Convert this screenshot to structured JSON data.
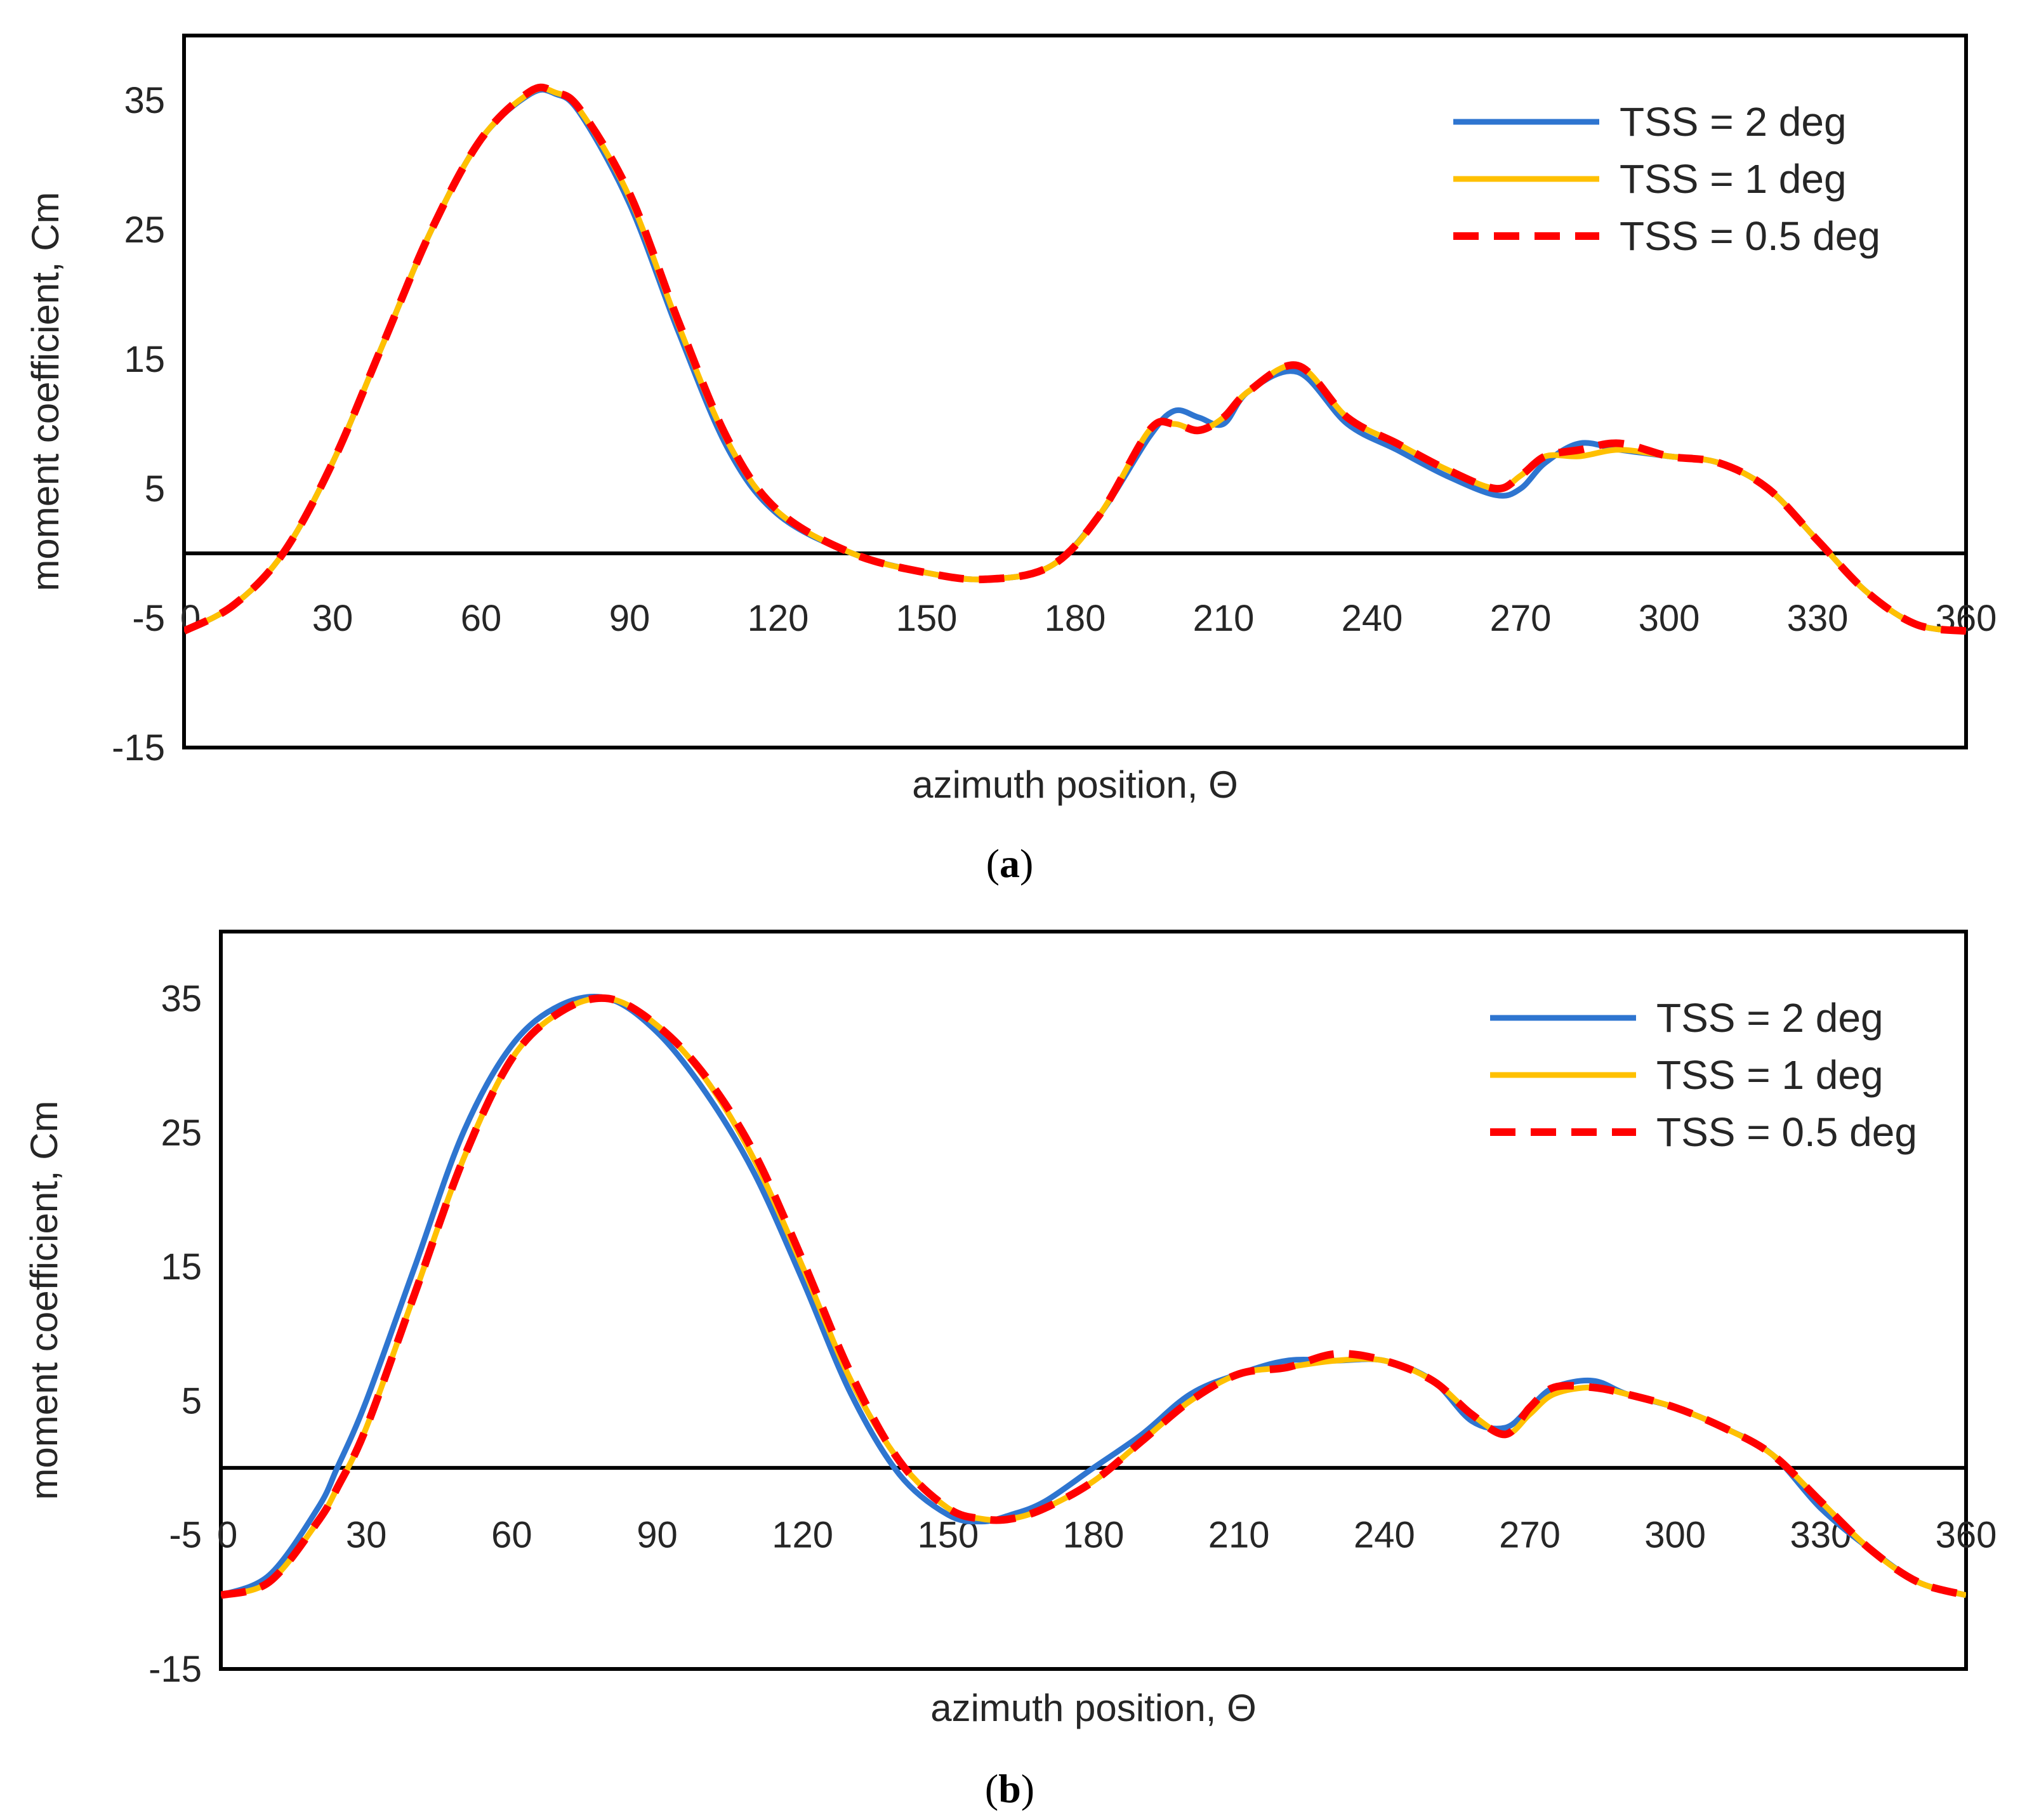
{
  "colors": {
    "tss_2": "#2E75D0",
    "tss_1": "#FFC000",
    "tss_05": "#FF0000",
    "axis": "#000000"
  },
  "chart_data": [
    {
      "id": "a",
      "type": "line",
      "caption_letter": "a",
      "xlabel": "azimuth position, Θ",
      "ylabel": "moment coefficient, Cm",
      "xlim": [
        0,
        360
      ],
      "ylim": [
        -15,
        40
      ],
      "xticks": [
        0,
        30,
        60,
        90,
        120,
        150,
        180,
        210,
        240,
        270,
        300,
        330,
        360
      ],
      "yticks": [
        35,
        25,
        15,
        5,
        -5,
        -15
      ],
      "x_tick_row_at_y": -5,
      "zero_line": 0,
      "legend_position": "top-right",
      "series": [
        {
          "name": "TSS = 2 deg",
          "style": "solid",
          "color_key": "tss_2",
          "x": [
            0,
            10,
            20,
            30,
            40,
            50,
            60,
            70,
            75,
            80,
            90,
            100,
            110,
            120,
            135,
            150,
            162,
            175,
            185,
            195,
            200,
            205,
            210,
            215,
            225,
            235,
            245,
            255,
            265,
            270,
            275,
            282,
            290,
            300,
            310,
            320,
            330,
            340,
            350,
            360
          ],
          "y": [
            -6,
            -4,
            0,
            7,
            16,
            25,
            32,
            35.5,
            35.5,
            34,
            27,
            17,
            8,
            3,
            0,
            -1.5,
            -2,
            -1,
            3,
            9,
            11,
            10.5,
            10,
            12.5,
            14,
            10,
            8,
            6,
            4.5,
            5,
            7,
            8.5,
            8,
            7.5,
            7,
            5,
            1,
            -3,
            -5.5,
            -6
          ]
        },
        {
          "name": "TSS = 1 deg",
          "style": "solid",
          "color_key": "tss_1",
          "x": [
            0,
            10,
            20,
            30,
            40,
            50,
            60,
            70,
            75,
            80,
            90,
            100,
            110,
            120,
            135,
            150,
            162,
            175,
            185,
            195,
            200,
            205,
            210,
            215,
            225,
            235,
            245,
            255,
            265,
            270,
            275,
            282,
            290,
            300,
            310,
            320,
            330,
            340,
            350,
            360
          ],
          "y": [
            -6,
            -4,
            0,
            7,
            16,
            25,
            32,
            35.6,
            35.6,
            34.2,
            27.5,
            17.5,
            8.5,
            3.2,
            0,
            -1.5,
            -2,
            -1,
            3,
            9.5,
            10,
            9.5,
            10.5,
            12.5,
            14.5,
            10.5,
            8.5,
            6.5,
            5,
            6,
            7.5,
            7.5,
            8,
            7.5,
            7,
            5,
            1,
            -3,
            -5.5,
            -6
          ]
        },
        {
          "name": "TSS = 0.5 deg",
          "style": "dashed",
          "color_key": "tss_05",
          "x": [
            0,
            10,
            20,
            30,
            40,
            50,
            60,
            70,
            75,
            80,
            90,
            100,
            110,
            120,
            135,
            150,
            162,
            175,
            185,
            195,
            200,
            205,
            210,
            215,
            225,
            235,
            245,
            255,
            265,
            270,
            275,
            282,
            290,
            300,
            310,
            320,
            330,
            340,
            350,
            360
          ],
          "y": [
            -6,
            -4,
            0,
            7,
            16,
            25,
            32,
            35.7,
            35.6,
            34.3,
            27.8,
            17.8,
            8.7,
            3.3,
            0,
            -1.5,
            -2,
            -1,
            3,
            9.5,
            10,
            9.5,
            10.5,
            12.5,
            14.5,
            10.5,
            8.5,
            6.5,
            5,
            6,
            7.5,
            8,
            8.5,
            7.5,
            7,
            5,
            1,
            -3,
            -5.5,
            -6
          ]
        }
      ]
    },
    {
      "id": "b",
      "type": "line",
      "caption_letter": "b",
      "xlabel": "azimuth position, Θ",
      "ylabel": "moment coefficient, Cm",
      "xlim": [
        0,
        360
      ],
      "ylim": [
        -15,
        40
      ],
      "xticks": [
        0,
        30,
        60,
        90,
        120,
        150,
        180,
        210,
        240,
        270,
        300,
        330,
        360
      ],
      "yticks": [
        35,
        25,
        15,
        5,
        -5,
        -15
      ],
      "x_tick_row_at_y": -5,
      "zero_line": 0,
      "legend_position": "top-right",
      "series": [
        {
          "name": "TSS = 2 deg",
          "style": "solid",
          "color_key": "tss_2",
          "x": [
            0,
            10,
            20,
            24,
            30,
            40,
            50,
            60,
            70,
            80,
            90,
            100,
            110,
            120,
            130,
            140,
            150,
            157,
            163,
            170,
            180,
            190,
            200,
            210,
            220,
            230,
            240,
            250,
            258,
            265,
            270,
            275,
            283,
            290,
            300,
            310,
            320,
            330,
            340,
            350,
            360
          ],
          "y": [
            -9.5,
            -8,
            -3,
            0,
            5,
            15,
            25,
            31.5,
            34.5,
            35,
            32.5,
            28,
            22,
            14,
            5.5,
            -0.5,
            -3.5,
            -4,
            -3.5,
            -2.5,
            0,
            2.5,
            5.5,
            7,
            8,
            8,
            8,
            6.5,
            3.5,
            3,
            4.5,
            6,
            6.5,
            5.5,
            4.5,
            3,
            1,
            -3,
            -6,
            -8.5,
            -9.5
          ]
        },
        {
          "name": "TSS = 1 deg",
          "style": "solid",
          "color_key": "tss_1",
          "x": [
            0,
            10,
            20,
            24,
            30,
            40,
            50,
            60,
            70,
            80,
            90,
            100,
            110,
            120,
            130,
            140,
            150,
            157,
            163,
            170,
            180,
            190,
            200,
            210,
            220,
            230,
            240,
            250,
            258,
            265,
            270,
            275,
            283,
            290,
            300,
            310,
            320,
            330,
            340,
            350,
            360
          ],
          "y": [
            -9.5,
            -8.5,
            -4,
            -1.5,
            3,
            13,
            23,
            30.5,
            34,
            35,
            33,
            29,
            23,
            15,
            6.5,
            0.5,
            -3,
            -3.8,
            -3.8,
            -3,
            -1,
            2,
            5,
            7,
            7.5,
            8,
            8,
            6.5,
            4,
            2.5,
            4,
            5.5,
            6,
            5.5,
            4.5,
            3,
            1,
            -2.5,
            -6,
            -8.5,
            -9.5
          ]
        },
        {
          "name": "TSS = 0.5 deg",
          "style": "dashed",
          "color_key": "tss_05",
          "x": [
            0,
            10,
            20,
            24,
            30,
            40,
            50,
            60,
            70,
            80,
            90,
            100,
            110,
            120,
            130,
            140,
            150,
            157,
            163,
            170,
            180,
            190,
            200,
            210,
            220,
            230,
            240,
            250,
            258,
            265,
            270,
            275,
            283,
            290,
            300,
            310,
            320,
            330,
            340,
            350,
            360
          ],
          "y": [
            -9.5,
            -8.5,
            -4,
            -1.5,
            3,
            13,
            23,
            30.5,
            34,
            35,
            33,
            29.2,
            23.5,
            15.5,
            7,
            0.5,
            -3,
            -3.8,
            -3.8,
            -3,
            -1,
            2,
            5,
            7,
            7.5,
            8.5,
            8,
            6.5,
            4,
            2.5,
            4.5,
            6,
            6,
            5.5,
            4.5,
            3,
            1,
            -2.5,
            -6,
            -8.5,
            -9.5
          ]
        }
      ]
    }
  ]
}
